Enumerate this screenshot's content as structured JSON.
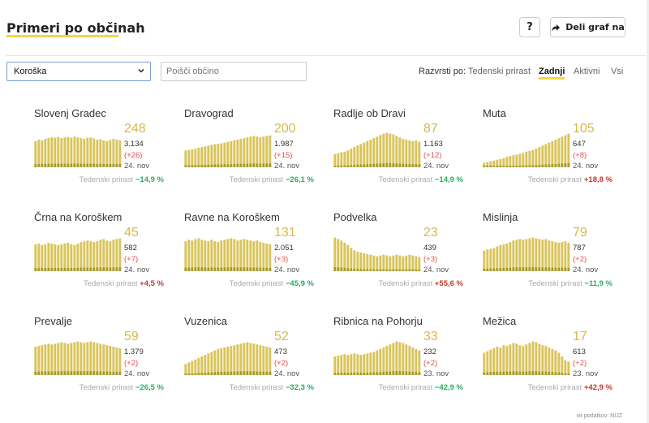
{
  "header": {
    "title": "Primeri po občinah",
    "help_label": "?",
    "share_label": "Deli graf na"
  },
  "filters": {
    "region_selected": "Koroška",
    "search_placeholder": "Poišči občino"
  },
  "sort": {
    "label": "Razvrsti po:",
    "options": [
      "Tedenski prirast",
      "Zadnji",
      "Aktivni",
      "Vsi"
    ],
    "active": "Zadnji"
  },
  "trend_label": "Tedenski prirast",
  "source": "vir podatkov: NIJZ",
  "colors": {
    "bar": "#d9c45a",
    "bar_dark": "#a89a2c",
    "big_number": "#d7b94a",
    "accent": "#f5d547",
    "positive": "#c0392b",
    "negative": "#27ae60"
  },
  "cards": [
    {
      "name": "Slovenj Gradec",
      "active": "248",
      "total": "3.134",
      "diff": "(+26)",
      "date": "24. nov",
      "trend": "−14,9 %",
      "trend_dir": "neg",
      "bars": [
        0.7,
        0.74,
        0.72,
        0.76,
        0.78,
        0.8,
        0.79,
        0.81,
        0.78,
        0.8,
        0.81,
        0.79,
        0.82,
        0.8,
        0.78,
        0.76,
        0.79,
        0.8,
        0.77,
        0.74,
        0.75,
        0.72,
        0.7,
        0.73,
        0.76,
        0.74,
        0.72
      ]
    },
    {
      "name": "Dravograd",
      "active": "200",
      "total": "1.987",
      "diff": "(+15)",
      "date": "24. nov",
      "trend": "−26,1 %",
      "trend_dir": "neg",
      "bars": [
        0.45,
        0.46,
        0.48,
        0.5,
        0.52,
        0.54,
        0.56,
        0.58,
        0.6,
        0.62,
        0.63,
        0.64,
        0.66,
        0.68,
        0.7,
        0.72,
        0.74,
        0.76,
        0.78,
        0.8,
        0.82,
        0.84,
        0.82,
        0.8,
        0.82,
        0.84,
        0.85
      ]
    },
    {
      "name": "Radlje ob Dravi",
      "active": "87",
      "total": "1.163",
      "diff": "(+12)",
      "date": "24. nov",
      "trend": "−14,9 %",
      "trend_dir": "neg",
      "bars": [
        0.35,
        0.38,
        0.4,
        0.42,
        0.45,
        0.5,
        0.55,
        0.58,
        0.62,
        0.66,
        0.7,
        0.74,
        0.78,
        0.82,
        0.86,
        0.9,
        0.92,
        0.9,
        0.88,
        0.84,
        0.8,
        0.76,
        0.74,
        0.72,
        0.7,
        0.72,
        0.68
      ]
    },
    {
      "name": "Muta",
      "active": "105",
      "total": "647",
      "diff": "(+8)",
      "date": "24. nov",
      "trend": "+18,8 %",
      "trend_dir": "pos",
      "bars": [
        0.12,
        0.14,
        0.16,
        0.18,
        0.2,
        0.22,
        0.24,
        0.28,
        0.3,
        0.32,
        0.34,
        0.36,
        0.38,
        0.42,
        0.44,
        0.46,
        0.5,
        0.54,
        0.58,
        0.62,
        0.66,
        0.7,
        0.74,
        0.78,
        0.82,
        0.86,
        0.9
      ]
    },
    {
      "name": "Črna na Koroškem",
      "active": "45",
      "total": "582",
      "diff": "(+7)",
      "date": "24. nov",
      "trend": "+4,5 %",
      "trend_dir": "pos",
      "bars": [
        0.72,
        0.74,
        0.7,
        0.72,
        0.76,
        0.74,
        0.72,
        0.7,
        0.72,
        0.74,
        0.76,
        0.72,
        0.7,
        0.74,
        0.78,
        0.8,
        0.82,
        0.8,
        0.78,
        0.8,
        0.84,
        0.86,
        0.82,
        0.8,
        0.84,
        0.86,
        0.88
      ]
    },
    {
      "name": "Ravne na Koroškem",
      "active": "131",
      "total": "2.051",
      "diff": "(+3)",
      "date": "24. nov",
      "trend": "−45,9 %",
      "trend_dir": "neg",
      "bars": [
        0.8,
        0.84,
        0.82,
        0.86,
        0.88,
        0.84,
        0.82,
        0.8,
        0.84,
        0.8,
        0.78,
        0.82,
        0.84,
        0.86,
        0.88,
        0.86,
        0.82,
        0.84,
        0.86,
        0.84,
        0.82,
        0.8,
        0.82,
        0.78,
        0.76,
        0.74,
        0.72
      ]
    },
    {
      "name": "Podvelka",
      "active": "23",
      "total": "439",
      "diff": "(+3)",
      "date": "24. nov",
      "trend": "+55,6 %",
      "trend_dir": "pos",
      "bars": [
        0.9,
        0.86,
        0.82,
        0.76,
        0.7,
        0.62,
        0.56,
        0.52,
        0.5,
        0.48,
        0.46,
        0.44,
        0.42,
        0.4,
        0.42,
        0.44,
        0.42,
        0.4,
        0.42,
        0.44,
        0.42,
        0.4,
        0.42,
        0.44,
        0.42,
        0.4,
        0.38
      ]
    },
    {
      "name": "Mislinja",
      "active": "79",
      "total": "787",
      "diff": "(+2)",
      "date": "24. nov",
      "trend": "−11,9 %",
      "trend_dir": "neg",
      "bars": [
        0.55,
        0.58,
        0.6,
        0.62,
        0.66,
        0.7,
        0.72,
        0.74,
        0.78,
        0.82,
        0.84,
        0.86,
        0.84,
        0.86,
        0.88,
        0.9,
        0.88,
        0.86,
        0.84,
        0.86,
        0.82,
        0.8,
        0.78,
        0.76,
        0.78,
        0.8,
        0.76
      ]
    },
    {
      "name": "Prevalje",
      "active": "59",
      "total": "1.379",
      "diff": "(+2)",
      "date": "24. nov",
      "trend": "−26,5 %",
      "trend_dir": "neg",
      "bars": [
        0.76,
        0.78,
        0.8,
        0.82,
        0.84,
        0.82,
        0.84,
        0.86,
        0.88,
        0.86,
        0.84,
        0.86,
        0.88,
        0.9,
        0.88,
        0.86,
        0.88,
        0.9,
        0.88,
        0.86,
        0.84,
        0.82,
        0.8,
        0.78,
        0.76,
        0.74,
        0.72
      ]
    },
    {
      "name": "Vuzenica",
      "active": "52",
      "total": "473",
      "diff": "(+2)",
      "date": "24. nov",
      "trend": "−32,3 %",
      "trend_dir": "neg",
      "bars": [
        0.3,
        0.34,
        0.38,
        0.42,
        0.46,
        0.5,
        0.54,
        0.58,
        0.62,
        0.66,
        0.7,
        0.72,
        0.74,
        0.76,
        0.78,
        0.8,
        0.82,
        0.84,
        0.86,
        0.88,
        0.86,
        0.84,
        0.82,
        0.8,
        0.78,
        0.76,
        0.74
      ]
    },
    {
      "name": "Ribnica na Pohorju",
      "active": "33",
      "total": "232",
      "diff": "(+2)",
      "date": "23. nov",
      "trend": "−42,9 %",
      "trend_dir": "neg",
      "bars": [
        0.5,
        0.52,
        0.54,
        0.56,
        0.54,
        0.56,
        0.58,
        0.56,
        0.54,
        0.56,
        0.58,
        0.6,
        0.62,
        0.66,
        0.7,
        0.74,
        0.78,
        0.82,
        0.86,
        0.9,
        0.88,
        0.86,
        0.82,
        0.78,
        0.74,
        0.7,
        0.66
      ]
    },
    {
      "name": "Mežica",
      "active": "17",
      "total": "613",
      "diff": "(+2)",
      "date": "23. nov",
      "trend": "+42,9 %",
      "trend_dir": "pos",
      "bars": [
        0.6,
        0.64,
        0.68,
        0.72,
        0.76,
        0.74,
        0.8,
        0.78,
        0.82,
        0.86,
        0.84,
        0.8,
        0.78,
        0.82,
        0.86,
        0.9,
        0.88,
        0.84,
        0.8,
        0.78,
        0.74,
        0.7,
        0.66,
        0.6,
        0.5,
        0.4,
        0.36
      ]
    }
  ]
}
